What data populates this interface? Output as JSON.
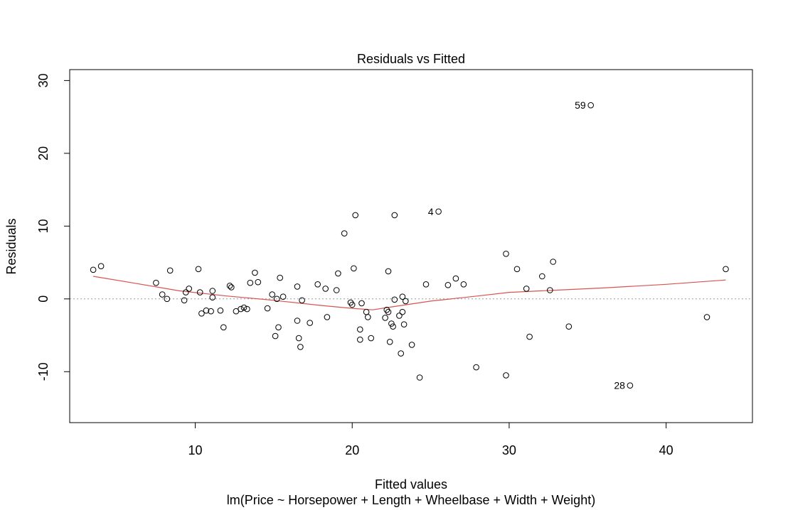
{
  "chart_data": {
    "type": "scatter",
    "title": "Residuals vs Fitted",
    "xlabel": "Fitted values",
    "subtitle": "lm(Price ~ Horsepower + Length + Wheelbase + Width + Weight)",
    "ylabel": "Residuals",
    "xlim": [
      2,
      45.5
    ],
    "ylim": [
      -17,
      31.5
    ],
    "xticks": [
      10,
      20,
      30,
      40
    ],
    "yticks": [
      -10,
      0,
      10,
      20,
      30
    ],
    "zero_line": 0,
    "grid": false,
    "points": [
      [
        3.5,
        4.0
      ],
      [
        4.0,
        4.5
      ],
      [
        7.5,
        2.2
      ],
      [
        7.9,
        0.6
      ],
      [
        8.2,
        0.0
      ],
      [
        8.4,
        3.9
      ],
      [
        9.3,
        -0.2
      ],
      [
        9.4,
        0.9
      ],
      [
        9.6,
        1.4
      ],
      [
        10.2,
        4.1
      ],
      [
        10.3,
        0.9
      ],
      [
        10.4,
        -2.0
      ],
      [
        10.7,
        -1.6
      ],
      [
        11.0,
        -1.7
      ],
      [
        11.1,
        1.1
      ],
      [
        11.1,
        0.2
      ],
      [
        11.6,
        -1.6
      ],
      [
        11.8,
        -3.9
      ],
      [
        12.2,
        1.8
      ],
      [
        12.3,
        1.6
      ],
      [
        12.6,
        -1.7
      ],
      [
        12.9,
        -1.4
      ],
      [
        13.1,
        -1.2
      ],
      [
        13.3,
        -1.4
      ],
      [
        13.5,
        2.2
      ],
      [
        13.8,
        3.6
      ],
      [
        14.0,
        2.3
      ],
      [
        14.6,
        -1.3
      ],
      [
        14.9,
        0.6
      ],
      [
        15.1,
        -5.1
      ],
      [
        15.2,
        0.0
      ],
      [
        15.3,
        -3.9
      ],
      [
        15.4,
        2.9
      ],
      [
        15.6,
        0.3
      ],
      [
        16.5,
        -3.0
      ],
      [
        16.5,
        1.7
      ],
      [
        16.6,
        -5.4
      ],
      [
        16.7,
        -6.6
      ],
      [
        16.8,
        -0.2
      ],
      [
        17.3,
        -3.3
      ],
      [
        17.8,
        2.0
      ],
      [
        18.3,
        1.4
      ],
      [
        18.4,
        -2.5
      ],
      [
        19.0,
        1.2
      ],
      [
        19.1,
        3.5
      ],
      [
        19.5,
        9.0
      ],
      [
        19.9,
        -0.5
      ],
      [
        20.0,
        -0.8
      ],
      [
        20.1,
        4.2
      ],
      [
        20.2,
        11.5
      ],
      [
        20.5,
        -4.2
      ],
      [
        20.5,
        -5.6
      ],
      [
        20.6,
        -0.6
      ],
      [
        20.9,
        -1.8
      ],
      [
        21.0,
        -2.5
      ],
      [
        21.2,
        -5.4
      ],
      [
        22.1,
        -2.6
      ],
      [
        22.2,
        -1.5
      ],
      [
        22.3,
        -1.8
      ],
      [
        22.3,
        3.8
      ],
      [
        22.4,
        -5.9
      ],
      [
        22.5,
        -3.4
      ],
      [
        22.6,
        -3.8
      ],
      [
        22.7,
        11.5
      ],
      [
        22.7,
        -0.1
      ],
      [
        23.0,
        -2.3
      ],
      [
        23.1,
        -7.5
      ],
      [
        23.2,
        0.3
      ],
      [
        23.2,
        -1.8
      ],
      [
        23.3,
        -3.5
      ],
      [
        23.4,
        -0.3
      ],
      [
        23.8,
        -6.3
      ],
      [
        24.3,
        -10.8
      ],
      [
        24.7,
        2.0
      ],
      [
        25.5,
        12.0
      ],
      [
        26.1,
        1.9
      ],
      [
        26.6,
        2.8
      ],
      [
        27.1,
        2.0
      ],
      [
        27.9,
        -9.4
      ],
      [
        29.8,
        6.2
      ],
      [
        29.8,
        -10.5
      ],
      [
        30.5,
        4.1
      ],
      [
        31.1,
        1.4
      ],
      [
        31.3,
        -5.2
      ],
      [
        32.1,
        3.1
      ],
      [
        32.6,
        1.2
      ],
      [
        32.8,
        5.1
      ],
      [
        33.8,
        -3.8
      ],
      [
        35.2,
        26.6
      ],
      [
        37.7,
        -11.9
      ],
      [
        42.6,
        -2.5
      ],
      [
        43.8,
        4.1
      ]
    ],
    "labeled_points": [
      {
        "label": "59",
        "x": 35.2,
        "y": 26.6
      },
      {
        "label": "4",
        "x": 25.5,
        "y": 12.0
      },
      {
        "label": "28",
        "x": 37.7,
        "y": -11.9
      }
    ],
    "smoother": {
      "color": "#d9534f",
      "x": [
        3.5,
        6,
        9,
        12,
        15,
        18,
        20,
        21.3,
        22.5,
        25,
        28,
        30,
        33,
        36,
        40,
        43.8
      ],
      "y": [
        3.1,
        2.2,
        1.1,
        0.4,
        -0.2,
        -0.9,
        -1.3,
        -1.5,
        -1.1,
        -0.3,
        0.4,
        0.9,
        1.2,
        1.5,
        2.0,
        2.6
      ]
    },
    "colors": {
      "points": "#000000",
      "zero_line": "#9a9a9a"
    }
  }
}
